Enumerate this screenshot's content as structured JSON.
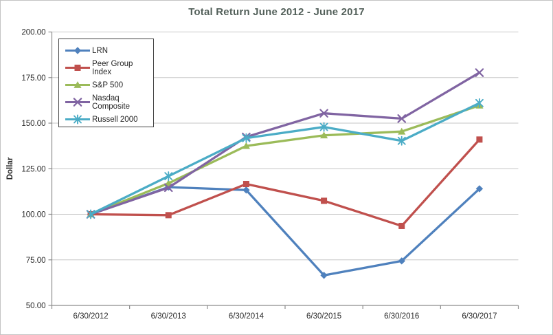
{
  "chart_data": {
    "type": "line",
    "title": "Total Return June 2012 - June 2017",
    "ylabel": "Dollar",
    "categories": [
      "6/30/2012",
      "6/30/2013",
      "6/30/2014",
      "6/30/2015",
      "6/30/2016",
      "6/30/2017"
    ],
    "series": [
      {
        "name": "LRN",
        "color": "#4F81BD",
        "marker": "diamond",
        "values": [
          100.0,
          114.9,
          113.3,
          66.5,
          74.4,
          114.0
        ]
      },
      {
        "name": "Peer Group Index",
        "color": "#C0504D",
        "marker": "square",
        "values": [
          100.0,
          99.5,
          116.6,
          107.4,
          93.6,
          141.0
        ]
      },
      {
        "name": "S&P 500",
        "color": "#9BBB59",
        "marker": "triangle",
        "values": [
          100.0,
          117.0,
          137.5,
          143.3,
          145.4,
          159.7
        ]
      },
      {
        "name": "Nasdaq Composite",
        "color": "#8064A2",
        "marker": "x",
        "values": [
          100.0,
          114.6,
          142.4,
          155.4,
          152.5,
          177.7
        ]
      },
      {
        "name": "Russell 2000",
        "color": "#4BACC6",
        "marker": "asterisk",
        "values": [
          100.0,
          120.9,
          141.8,
          147.9,
          140.3,
          161.0
        ]
      }
    ],
    "ylim": [
      50,
      200
    ],
    "ytick_values": [
      50,
      75,
      100,
      125,
      150,
      175,
      200
    ],
    "ytick_labels": [
      "50.00",
      "75.00",
      "100.00",
      "125.00",
      "150.00",
      "175.00",
      "200.00"
    ],
    "grid": true,
    "legend_position": "top-left",
    "styles": {
      "grid_color": "#c6c6c6",
      "axis_color": "#8c8c8c",
      "tick_label_color": "#2b2b2b",
      "title_color": "#53605a",
      "legend_border_color": "#404040",
      "chart_border_color": "#c3c3c3",
      "background": "#ffffff"
    }
  }
}
